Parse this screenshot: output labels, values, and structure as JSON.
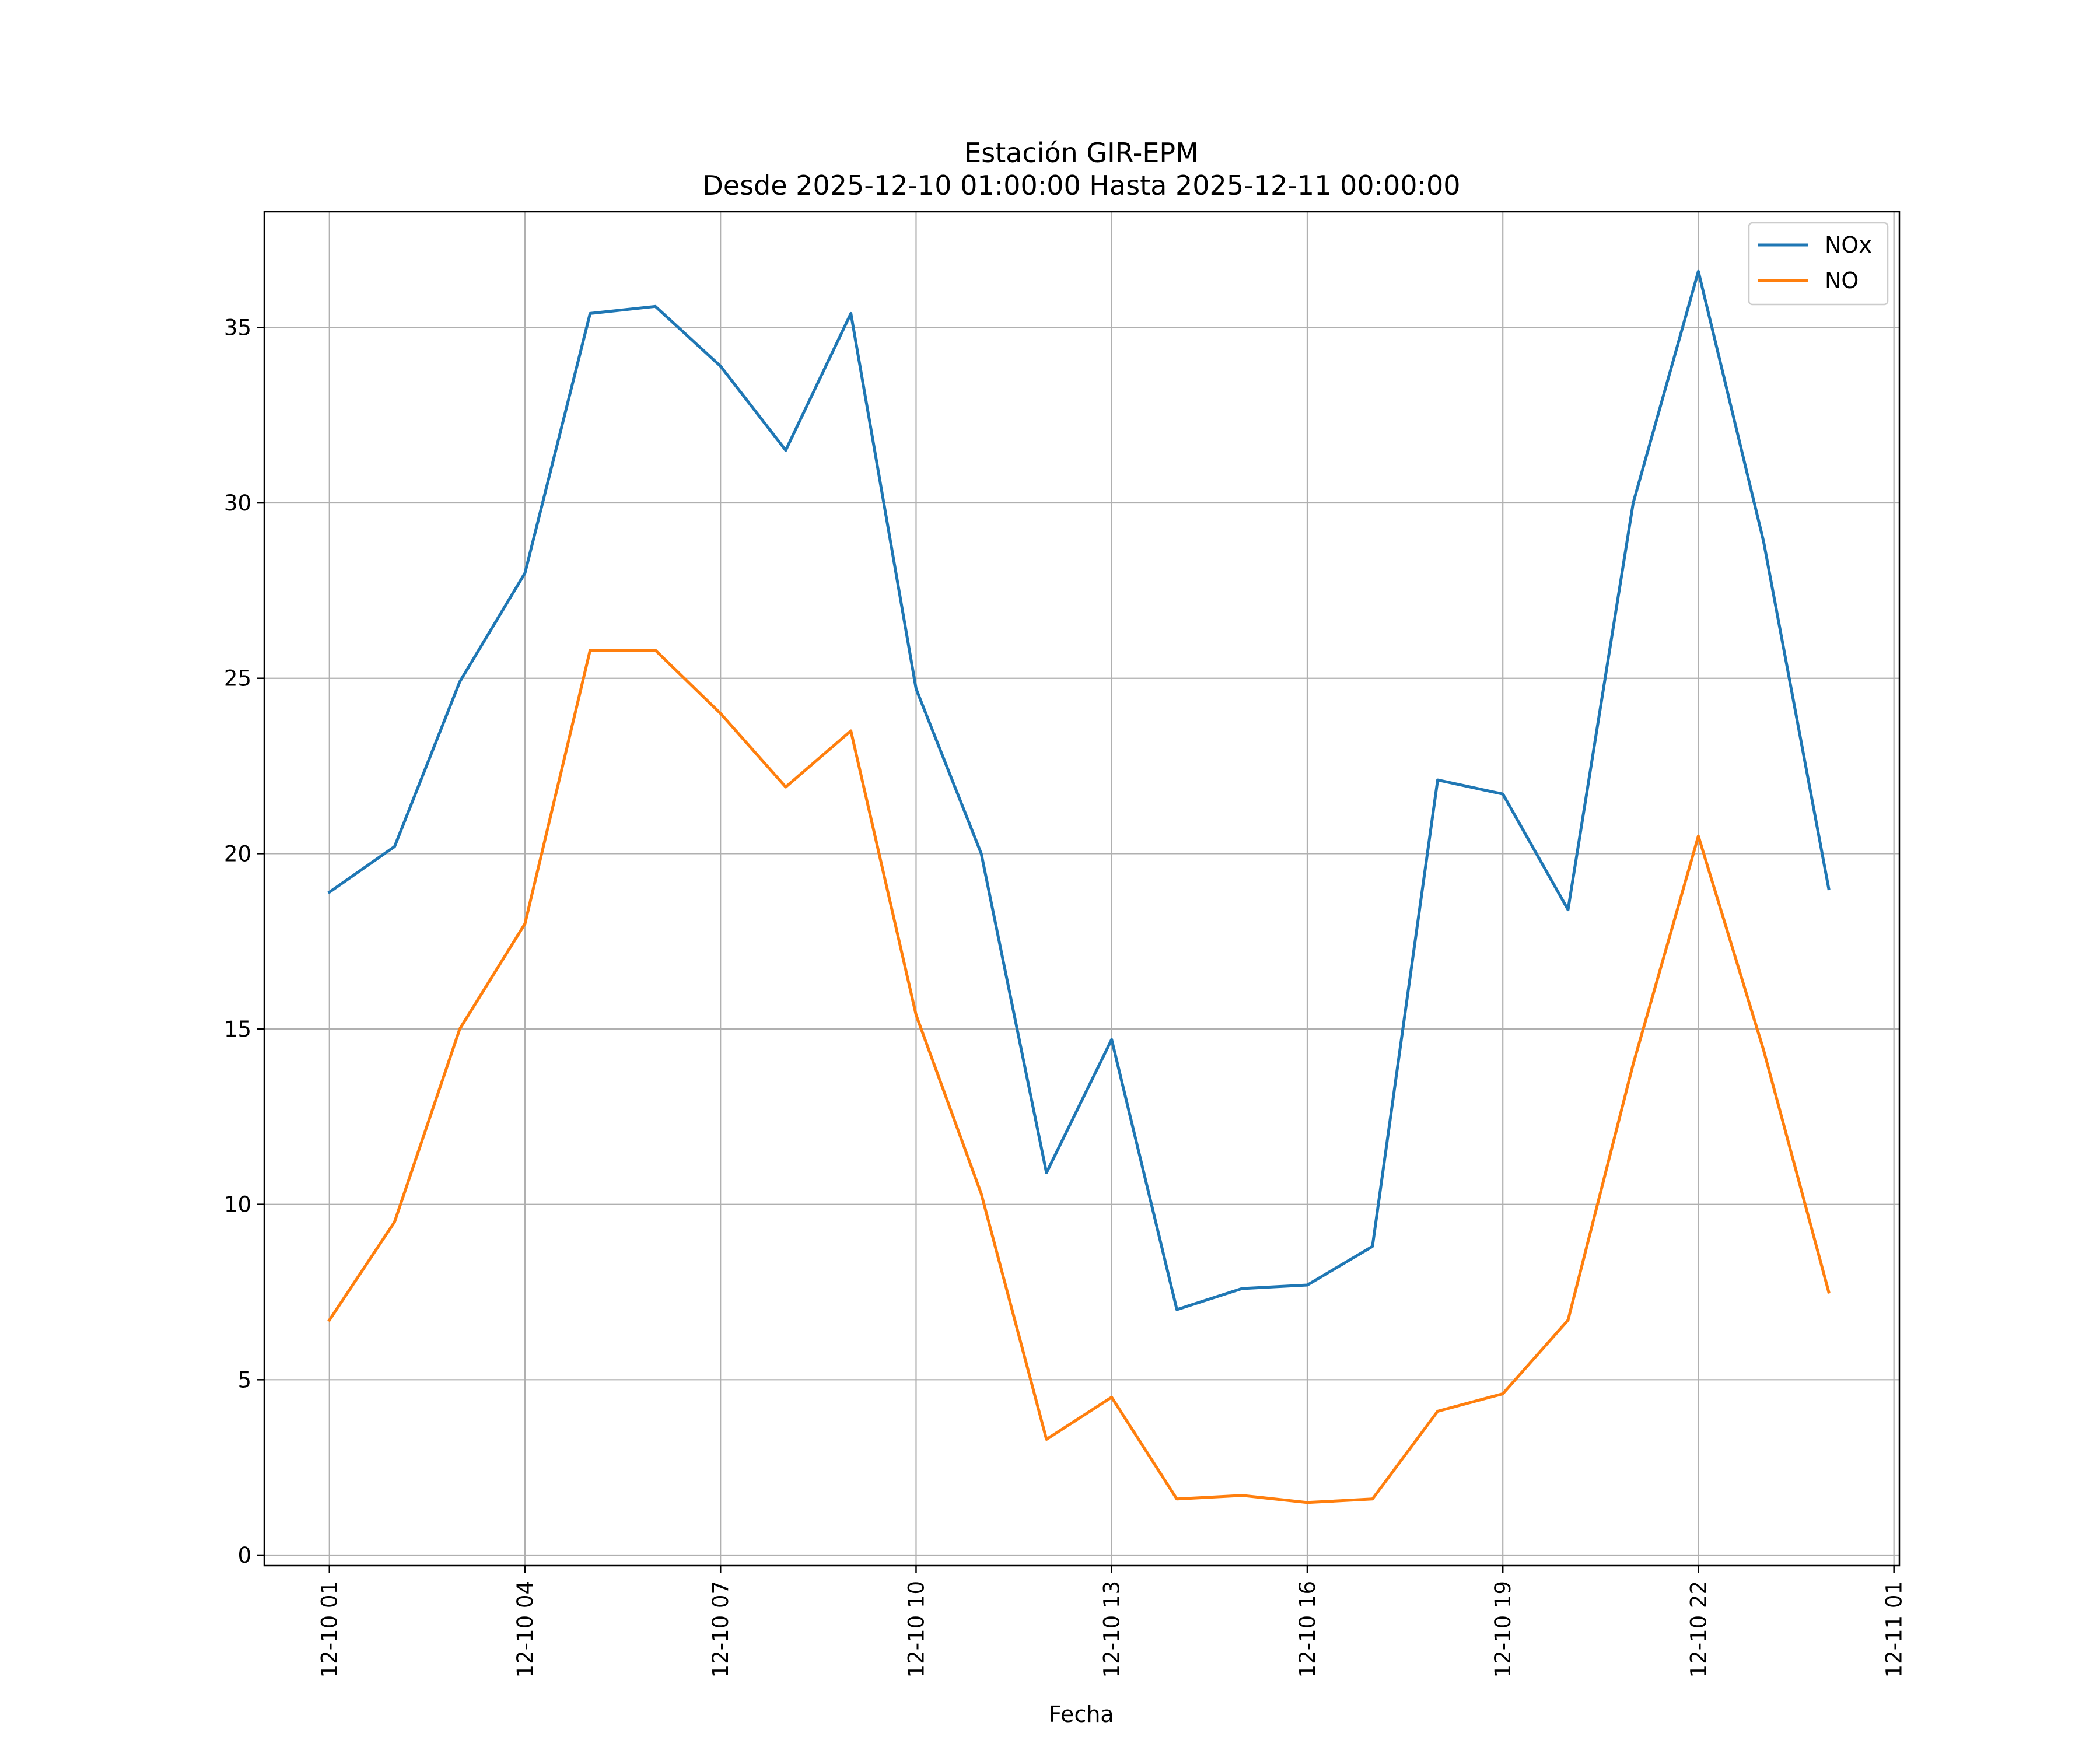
{
  "chart_data": {
    "type": "line",
    "title": "Estación GIR-EPM",
    "subtitle": "Desde 2025-12-10 01:00:00 Hasta 2025-12-11 00:00:00",
    "xlabel": "Fecha",
    "ylabel": "",
    "x": [
      "2025-12-10 01:00",
      "2025-12-10 02:00",
      "2025-12-10 03:00",
      "2025-12-10 04:00",
      "2025-12-10 05:00",
      "2025-12-10 06:00",
      "2025-12-10 07:00",
      "2025-12-10 08:00",
      "2025-12-10 09:00",
      "2025-12-10 10:00",
      "2025-12-10 11:00",
      "2025-12-10 12:00",
      "2025-12-10 13:00",
      "2025-12-10 14:00",
      "2025-12-10 15:00",
      "2025-12-10 16:00",
      "2025-12-10 17:00",
      "2025-12-10 18:00",
      "2025-12-10 19:00",
      "2025-12-10 20:00",
      "2025-12-10 21:00",
      "2025-12-10 22:00",
      "2025-12-10 23:00",
      "2025-12-11 00:00"
    ],
    "xlim": [
      "2025-12-10 00:00",
      "2025-12-11 01:05"
    ],
    "ylim": [
      -0.3,
      38.3
    ],
    "xticks": [
      {
        "value": "2025-12-10 01:00",
        "label": "12-10 01"
      },
      {
        "value": "2025-12-10 04:00",
        "label": "12-10 04"
      },
      {
        "value": "2025-12-10 07:00",
        "label": "12-10 07"
      },
      {
        "value": "2025-12-10 10:00",
        "label": "12-10 10"
      },
      {
        "value": "2025-12-10 13:00",
        "label": "12-10 13"
      },
      {
        "value": "2025-12-10 16:00",
        "label": "12-10 16"
      },
      {
        "value": "2025-12-10 19:00",
        "label": "12-10 19"
      },
      {
        "value": "2025-12-10 22:00",
        "label": "12-10 22"
      },
      {
        "value": "2025-12-11 01:00",
        "label": "12-11 01"
      }
    ],
    "yticks": [
      {
        "value": 0,
        "label": "0"
      },
      {
        "value": 5,
        "label": "5"
      },
      {
        "value": 10,
        "label": "10"
      },
      {
        "value": 15,
        "label": "15"
      },
      {
        "value": 20,
        "label": "20"
      },
      {
        "value": 25,
        "label": "25"
      },
      {
        "value": 30,
        "label": "30"
      },
      {
        "value": 35,
        "label": "35"
      }
    ],
    "grid": true,
    "legend": "top-right",
    "series": [
      {
        "name": "NOx",
        "color": "#1f77b4",
        "values": [
          18.9,
          20.2,
          24.9,
          28.0,
          35.4,
          35.6,
          33.9,
          31.5,
          35.4,
          24.7,
          20.0,
          10.9,
          14.7,
          7.0,
          7.6,
          7.7,
          8.8,
          22.1,
          21.7,
          18.4,
          30.0,
          36.6,
          28.9,
          19.0
        ]
      },
      {
        "name": "NO",
        "color": "#ff7f0e",
        "values": [
          6.7,
          9.5,
          15.0,
          18.0,
          25.8,
          25.8,
          24.0,
          21.9,
          23.5,
          15.4,
          10.3,
          3.3,
          4.5,
          1.6,
          1.7,
          1.5,
          1.6,
          4.1,
          4.6,
          6.7,
          14.0,
          20.5,
          14.4,
          7.5
        ]
      }
    ]
  }
}
